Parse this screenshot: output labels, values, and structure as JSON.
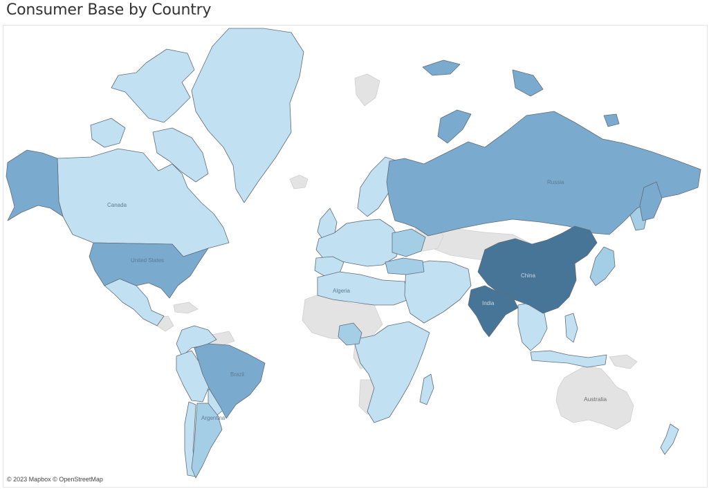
{
  "title": "Consumer Base by Country",
  "attribution": "© 2023 Mapbox © OpenStreetMap",
  "colors": {
    "level_1": "#c1e1f2",
    "level_2": "#a4cde6",
    "level_3": "#7aabcf",
    "level_4": "#467598",
    "no_data": "#e3e3e3",
    "border": "#5f6b78"
  },
  "map_labels": {
    "canada": "Canada",
    "united_states": "United States",
    "brazil": "Brazil",
    "russia": "Russia",
    "china": "China",
    "india": "India",
    "algeria": "Algeria",
    "argentina": "Argentina",
    "australia": "Australia"
  }
}
